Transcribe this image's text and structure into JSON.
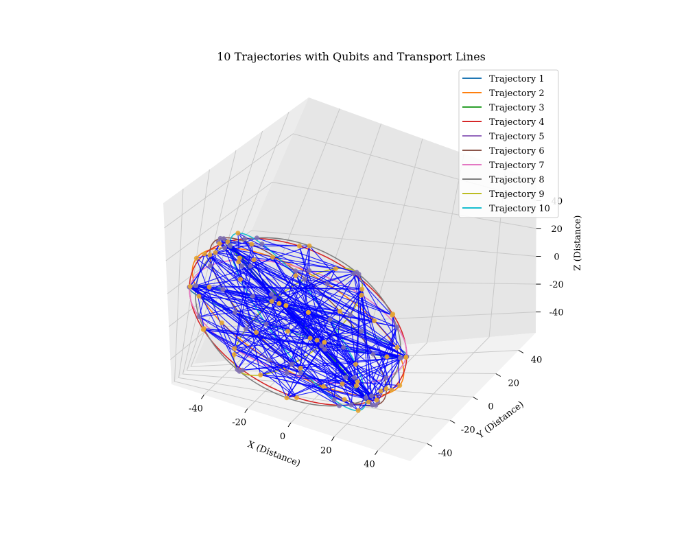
{
  "chart_data": {
    "type": "line",
    "subtype": "3d-line-with-scatter",
    "title": "10 Trajectories with Qubits and Transport Lines",
    "xlabel": "X (Distance)",
    "ylabel": "Y (Distance)",
    "zlabel": "Z (Distance)",
    "xlim": [
      -55,
      55
    ],
    "ylim": [
      -55,
      55
    ],
    "zlim": [
      -55,
      55
    ],
    "x_ticks": [
      -40,
      -20,
      0,
      20,
      40
    ],
    "y_ticks": [
      -40,
      -20,
      0,
      20,
      40
    ],
    "z_ticks": [
      -40,
      -20,
      0,
      20,
      40
    ],
    "grid": true,
    "legend_position": "top-right",
    "sphere_radius": 50,
    "series": [
      {
        "name": "Trajectory 1",
        "color": "#1f77b4"
      },
      {
        "name": "Trajectory 2",
        "color": "#ff7f0e"
      },
      {
        "name": "Trajectory 3",
        "color": "#2ca02c"
      },
      {
        "name": "Trajectory 4",
        "color": "#d62728"
      },
      {
        "name": "Trajectory 5",
        "color": "#9467bd"
      },
      {
        "name": "Trajectory 6",
        "color": "#8c564b"
      },
      {
        "name": "Trajectory 7",
        "color": "#e377c2"
      },
      {
        "name": "Trajectory 8",
        "color": "#7f7f7f"
      },
      {
        "name": "Trajectory 9",
        "color": "#bcbd22"
      },
      {
        "name": "Trajectory 10",
        "color": "#17becf"
      }
    ],
    "qubit_marker_colors": [
      "#e6a532",
      "#7f6fb0"
    ],
    "transport_line_color": "#0000ff"
  }
}
